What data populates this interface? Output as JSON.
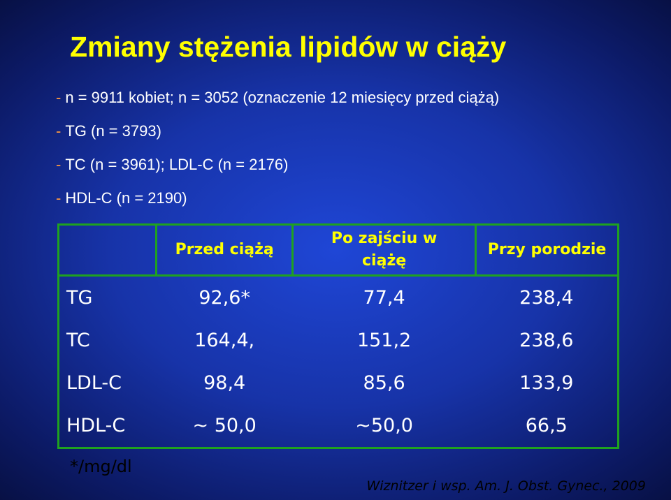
{
  "title": "Zmiany stężenia lipidów w ciąży",
  "bullet": "-",
  "bullets": [
    "n = 9911 kobiet; n = 3052 (oznaczenie 12 miesięcy przed ciążą)",
    "TG (n = 3793)",
    "TC (n = 3961); LDL-C (n = 2176)",
    "HDL-C (n = 2190)"
  ],
  "table": {
    "header": [
      "Przed ciążą",
      "Po zajściu w ciążę",
      "Przy porodzie"
    ],
    "rows": [
      [
        "TG",
        "92,6*",
        "77,4",
        "238,4"
      ],
      [
        "TC",
        "164,4,",
        "151,2",
        "238,6"
      ],
      [
        "LDL-C",
        "98,4",
        "85,6",
        "133,9"
      ],
      [
        "HDL-C",
        "~ 50,0",
        "~50,0",
        "66,5"
      ]
    ]
  },
  "footnote": "*/mg/dl",
  "citation": "Wiznitzer i wsp. Am. J. Obst. Gynec., 2009"
}
